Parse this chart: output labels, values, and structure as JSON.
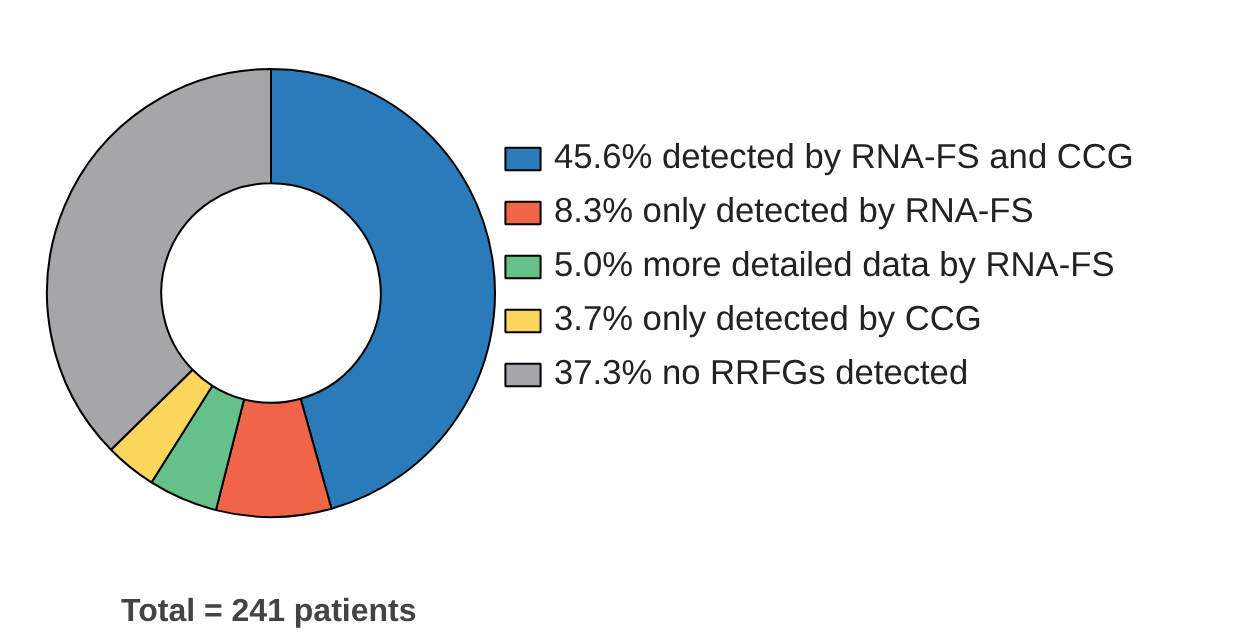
{
  "chart_data": {
    "type": "donut",
    "categories": [
      "45.6% detected by RNA-FS and CCG",
      "8.3% only detected by RNA-FS",
      "5.0% more detailed data by RNA-FS",
      "3.7% only detected by CCG",
      "37.3% no RRFGs detected"
    ],
    "values": [
      45.6,
      8.3,
      5.0,
      3.7,
      37.3
    ],
    "colors": [
      "#2b7bba",
      "#ef6548",
      "#66c08a",
      "#fcd55c",
      "#a6a6aa"
    ],
    "legend": "right",
    "annotations": [
      "Total = 241 patients"
    ]
  }
}
